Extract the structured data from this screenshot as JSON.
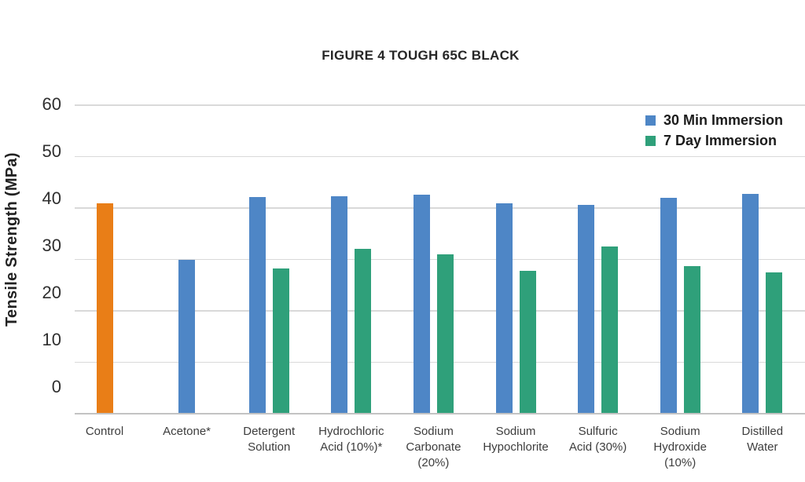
{
  "chart_data": {
    "type": "bar",
    "title": "FIGURE 4 TOUGH 65C BLACK",
    "ylabel": "Tensile Strength (MPa)",
    "xlabel": "",
    "ylim": [
      0,
      60
    ],
    "ytick_interval": 10,
    "grid": true,
    "legend_position": "top-right",
    "categories": [
      "Control",
      "Acetone*",
      "Detergent Solution",
      "Hydrochloric Acid (10%)*",
      "Sodium Carbonate (20%)",
      "Sodium Hypochlorite",
      "Sulfuric Acid (30%)",
      "Sodium Hydroxide (10%)",
      "Distilled Water"
    ],
    "category_label_lines": [
      [
        "Control"
      ],
      [
        "Acetone*"
      ],
      [
        "Detergent",
        "Solution"
      ],
      [
        "Hydrochloric",
        "Acid (10%)*"
      ],
      [
        "Sodium",
        "Carbonate",
        "(20%)"
      ],
      [
        "Sodium",
        "Hypochlorite"
      ],
      [
        "Sulfuric",
        "Acid (30%)"
      ],
      [
        "Sodium",
        "Hydroxide",
        "(10%)"
      ],
      [
        "Distilled",
        "Water"
      ]
    ],
    "series": [
      {
        "name": "30 Min Immersion",
        "color": "#4E86C6",
        "values": [
          40.8,
          29.8,
          42.0,
          42.2,
          42.4,
          40.8,
          40.5,
          41.8,
          42.6
        ]
      },
      {
        "name": "7 Day Immersion",
        "color": "#2FA07A",
        "values": [
          null,
          null,
          28.1,
          31.9,
          30.8,
          27.6,
          32.4,
          28.5,
          27.4
        ]
      }
    ],
    "control_bar_color": "#E97E17",
    "gridline_color": "#D9D9D9",
    "axis_line_color": "#C3C3C3"
  }
}
